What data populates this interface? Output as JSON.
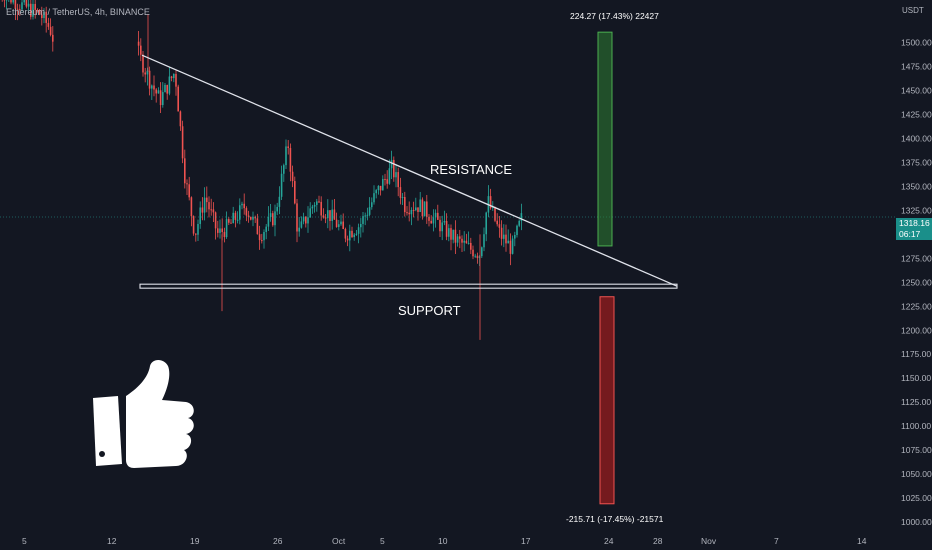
{
  "header": {
    "symbol_line": "Ethereum / TetherUS, 4h, BINANCE",
    "axis_unit": "USDT"
  },
  "last_price": {
    "value": "1318.16",
    "countdown": "06:17",
    "price": 1318.16
  },
  "annotations": {
    "resistance": "RESISTANCE",
    "support": "SUPPORT"
  },
  "measures": {
    "up_label": "224.27 (17.43%) 22427",
    "down_label": "-215.71 (-17.45%) -21571"
  },
  "icons": {
    "thumb": "thumbs-up-icon"
  },
  "colors": {
    "background": "#131722",
    "up": "#26a69a",
    "down": "#ef5350",
    "gain_box": "#2e7d32",
    "loss_box": "#b71c1c"
  },
  "chart_data": {
    "type": "candlestick",
    "title": "",
    "ylabel": "USDT",
    "ylim": [
      1000,
      1525
    ],
    "yticks": [
      "1000.00",
      "1025.00",
      "1050.00",
      "1075.00",
      "1100.00",
      "1125.00",
      "1150.00",
      "1175.00",
      "1200.00",
      "1225.00",
      "1250.00",
      "1275.00",
      "1300.00",
      "1325.00",
      "1350.00",
      "1375.00",
      "1400.00",
      "1425.00",
      "1450.00",
      "1475.00",
      "1500.00"
    ],
    "xticks": [
      "5",
      "12",
      "19",
      "26",
      "Oct",
      "5",
      "10",
      "17",
      "24",
      "28",
      "Nov",
      "7",
      "14"
    ],
    "grid": false,
    "lines": [
      {
        "name": "resistance",
        "from": {
          "x": "Sep 14",
          "y": 1487
        },
        "to": {
          "x": "Oct 27",
          "y": 1246
        }
      },
      {
        "name": "support",
        "from": {
          "x": "Sep 14",
          "y": 1246
        },
        "to": {
          "x": "Oct 27",
          "y": 1246
        }
      }
    ],
    "price_ranges": [
      {
        "name": "up",
        "from": 1288,
        "to": 1511,
        "change": "224.27 (17.43%)"
      },
      {
        "name": "down",
        "from": 1235,
        "to": 1019,
        "change": "-215.71 (-17.45%)"
      }
    ],
    "last_price": 1318.16
  }
}
